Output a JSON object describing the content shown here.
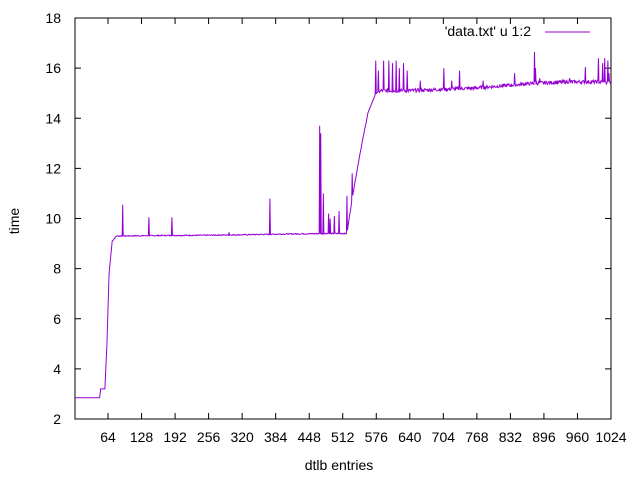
{
  "chart_data": {
    "type": "line",
    "title": "",
    "xlabel": "dtlb entries",
    "ylabel": "time",
    "xlim": [
      1,
      1024
    ],
    "ylim": [
      2,
      18
    ],
    "x_ticks": [
      64,
      128,
      192,
      256,
      320,
      384,
      448,
      512,
      576,
      640,
      704,
      768,
      832,
      896,
      960,
      1024
    ],
    "y_ticks": [
      2,
      4,
      6,
      8,
      10,
      12,
      14,
      16,
      18
    ],
    "grid": false,
    "legend_position": "top-right",
    "series": [
      {
        "name": "'data.txt' u 1:2",
        "color": "#9400d3",
        "breakpoints": [
          [
            1,
            2.85
          ],
          [
            48,
            2.85
          ],
          [
            50,
            3.2
          ],
          [
            58,
            3.2
          ],
          [
            62,
            5.0
          ],
          [
            66,
            7.8
          ],
          [
            72,
            9.1
          ],
          [
            80,
            9.3
          ],
          [
            160,
            9.32
          ],
          [
            240,
            9.33
          ],
          [
            320,
            9.35
          ],
          [
            400,
            9.38
          ],
          [
            480,
            9.4
          ],
          [
            520,
            9.4
          ],
          [
            530,
            10.8
          ],
          [
            545,
            12.6
          ],
          [
            560,
            14.2
          ],
          [
            575,
            15.0
          ],
          [
            585,
            15.1
          ],
          [
            640,
            15.1
          ],
          [
            700,
            15.15
          ],
          [
            760,
            15.2
          ],
          [
            820,
            15.3
          ],
          [
            880,
            15.4
          ],
          [
            940,
            15.45
          ],
          [
            1000,
            15.45
          ],
          [
            1024,
            15.4
          ]
        ],
        "spikes": [
          [
            92,
            10.55
          ],
          [
            142,
            10.05
          ],
          [
            186,
            10.05
          ],
          [
            373,
            10.8
          ],
          [
            373,
            9.55
          ],
          [
            295,
            9.45
          ],
          [
            468,
            13.7
          ],
          [
            470,
            13.4
          ],
          [
            475,
            11.0
          ],
          [
            485,
            10.2
          ],
          [
            488,
            10.0
          ],
          [
            496,
            10.1
          ],
          [
            505,
            10.3
          ],
          [
            520,
            10.9
          ],
          [
            530,
            11.8
          ],
          [
            575,
            16.3
          ],
          [
            580,
            15.9
          ],
          [
            590,
            16.3
          ],
          [
            600,
            16.3
          ],
          [
            607,
            16.2
          ],
          [
            614,
            16.3
          ],
          [
            620,
            16.0
          ],
          [
            628,
            16.2
          ],
          [
            635,
            15.9
          ],
          [
            660,
            15.5
          ],
          [
            705,
            16.0
          ],
          [
            720,
            15.5
          ],
          [
            735,
            15.9
          ],
          [
            780,
            15.5
          ],
          [
            840,
            15.8
          ],
          [
            878,
            16.65
          ],
          [
            880,
            16.0
          ],
          [
            888,
            15.6
          ],
          [
            945,
            15.6
          ],
          [
            975,
            16.05
          ],
          [
            1000,
            16.4
          ],
          [
            1008,
            16.2
          ],
          [
            1012,
            16.4
          ],
          [
            1018,
            16.3
          ],
          [
            1020,
            15.8
          ]
        ]
      }
    ]
  }
}
